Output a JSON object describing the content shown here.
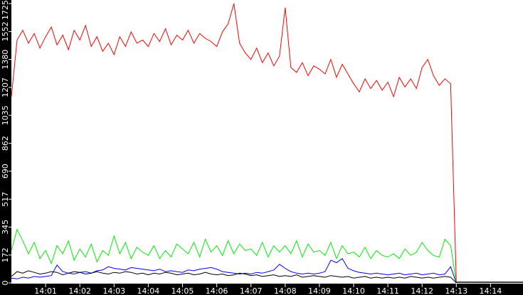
{
  "chart_data": {
    "type": "line",
    "title": "",
    "xlabel": "",
    "ylabel": "",
    "ylim": [
      0,
      1725
    ],
    "xlim": [
      "14:00",
      "14:15"
    ],
    "grid": false,
    "background": "#ffffff",
    "frame_color": "#000000",
    "y_ticks": [
      "0",
      "172",
      "345",
      "517",
      "690",
      "862",
      "1035",
      "1207",
      "1380",
      "1552",
      "1725"
    ],
    "x_ticks": [
      "14:01",
      "14:02",
      "14:03",
      "14:04",
      "14:05",
      "14:06",
      "14:07",
      "14:08",
      "14:09",
      "14:10",
      "14:11",
      "14:12",
      "14:13",
      "14:14"
    ],
    "x_start": "14:00:00",
    "sample_interval_seconds": 10,
    "series": [
      {
        "color": "#ff0000",
        "values": [
          1150,
          1500,
          1560,
          1480,
          1540,
          1450,
          1520,
          1580,
          1470,
          1530,
          1440,
          1560,
          1500,
          1590,
          1460,
          1520,
          1430,
          1480,
          1410,
          1520,
          1460,
          1550,
          1480,
          1500,
          1460,
          1540,
          1490,
          1570,
          1470,
          1530,
          1500,
          1560,
          1480,
          1540,
          1510,
          1490,
          1460,
          1550,
          1600,
          1725,
          1480,
          1420,
          1380,
          1450,
          1360,
          1420,
          1340,
          1400,
          1700,
          1330,
          1300,
          1360,
          1280,
          1340,
          1320,
          1290,
          1380,
          1270,
          1350,
          1290,
          1230,
          1180,
          1260,
          1200,
          1250,
          1190,
          1240,
          1150,
          1270,
          1210,
          1260,
          1200,
          1330,
          1380,
          1280,
          1220,
          1260,
          1230,
          0
        ]
      },
      {
        "color": "#00ee00",
        "values": [
          200,
          330,
          260,
          180,
          250,
          150,
          200,
          120,
          230,
          180,
          260,
          140,
          210,
          160,
          240,
          130,
          200,
          170,
          290,
          180,
          250,
          150,
          220,
          190,
          170,
          230,
          150,
          200,
          160,
          240,
          210,
          180,
          250,
          160,
          270,
          190,
          230,
          170,
          260,
          180,
          240,
          200,
          210,
          170,
          250,
          160,
          230,
          190,
          230,
          180,
          260,
          160,
          240,
          190,
          200,
          170,
          250,
          150,
          230,
          180,
          190,
          160,
          220,
          150,
          200,
          170,
          160,
          180,
          150,
          210,
          170,
          190,
          250,
          200,
          170,
          160,
          270,
          230,
          0
        ]
      },
      {
        "color": "#0000ff",
        "values": [
          30,
          25,
          35,
          30,
          40,
          35,
          40,
          45,
          110,
          70,
          60,
          55,
          65,
          70,
          60,
          75,
          80,
          100,
          90,
          85,
          80,
          95,
          90,
          85,
          80,
          75,
          85,
          70,
          75,
          70,
          65,
          80,
          75,
          85,
          90,
          95,
          85,
          70,
          65,
          60,
          55,
          60,
          55,
          65,
          60,
          70,
          80,
          115,
          90,
          70,
          60,
          55,
          60,
          55,
          60,
          70,
          140,
          125,
          150,
          90,
          75,
          65,
          60,
          55,
          60,
          55,
          50,
          55,
          60,
          50,
          55,
          60,
          50,
          55,
          60,
          50,
          55,
          100,
          0
        ]
      },
      {
        "color": "#000000",
        "values": [
          40,
          70,
          60,
          75,
          65,
          55,
          60,
          70,
          65,
          50,
          60,
          70,
          65,
          55,
          60,
          70,
          60,
          55,
          65,
          60,
          70,
          65,
          55,
          60,
          50,
          60,
          55,
          65,
          60,
          50,
          55,
          60,
          50,
          55,
          65,
          55,
          50,
          55,
          45,
          50,
          60,
          55,
          45,
          50,
          40,
          45,
          50,
          40,
          45,
          40,
          50,
          35,
          40,
          45,
          40,
          35,
          45,
          40,
          35,
          40,
          30,
          35,
          40,
          30,
          35,
          30,
          35,
          30,
          35,
          30,
          40,
          35,
          30,
          35,
          30,
          35,
          40,
          35,
          0
        ]
      }
    ]
  }
}
